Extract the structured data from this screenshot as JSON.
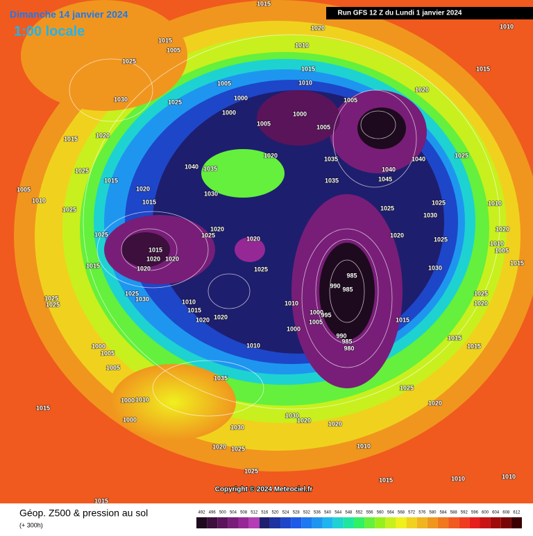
{
  "header": {
    "date": "Dimanche 14 janvier 2024",
    "time": "1:00 locale",
    "run": "Run GFS 12 Z du Lundi 1 janvier 2024"
  },
  "copyright": "Copyright © 2024 Meteociel.fr",
  "legend": {
    "title": "Géop. Z500 & pression au sol",
    "subtitle": "(+ 300h)",
    "scale_values": [
      492,
      496,
      500,
      504,
      508,
      512,
      516,
      520,
      524,
      528,
      532,
      536,
      540,
      544,
      548,
      552,
      556,
      560,
      564,
      568,
      572,
      576,
      580,
      584,
      588,
      592,
      596,
      600,
      604,
      608,
      612
    ],
    "scale_colors": [
      "#1e0a1e",
      "#3c0f3c",
      "#5a145a",
      "#781e78",
      "#962896",
      "#b43cb4",
      "#1e1e6e",
      "#1e32a0",
      "#1e46c8",
      "#1e5ae6",
      "#1e78f0",
      "#1e96f0",
      "#1eb4f0",
      "#1ed2d2",
      "#1ee6a0",
      "#32f064",
      "#64f03c",
      "#96f01e",
      "#c8f01e",
      "#f0f01e",
      "#f0d21e",
      "#f0b41e",
      "#f0961e",
      "#f0781e",
      "#f05a1e",
      "#f03c1e",
      "#e61e1e",
      "#c81414",
      "#a00a0a",
      "#780505",
      "#3c0000"
    ]
  },
  "isobar_labels": [
    1015,
    1020,
    1010,
    1015,
    1005,
    1025,
    1030,
    1025,
    1005,
    1000,
    1000,
    1005,
    1015,
    1010,
    1000,
    1005,
    1005,
    1020,
    1015,
    1010,
    1025,
    1040,
    1045,
    1040,
    1035,
    1035,
    1020,
    1040,
    1035,
    1030,
    1020,
    1015,
    1015,
    1020,
    1015,
    1025,
    1005,
    1010,
    1025,
    1025,
    1015,
    1020,
    1020,
    1020,
    1015,
    1025,
    1030,
    1025,
    1025,
    1020,
    1025,
    1020,
    1025,
    1010,
    1015,
    1020,
    1020,
    1010,
    1000,
    1005,
    995,
    1000,
    990,
    985,
    985,
    990,
    985,
    980,
    1015,
    1025,
    1025,
    1020,
    1030,
    1025,
    1030,
    1025,
    1020,
    1015,
    1015,
    1010,
    1020,
    1010,
    1005,
    1015,
    1010,
    1000,
    1005,
    1005,
    1035,
    1000,
    1010,
    1000,
    1015,
    1025,
    1020,
    1030,
    1020,
    1020,
    1030,
    1020,
    1025,
    1010,
    1025,
    1015,
    1010,
    1010,
    1015
  ]
}
